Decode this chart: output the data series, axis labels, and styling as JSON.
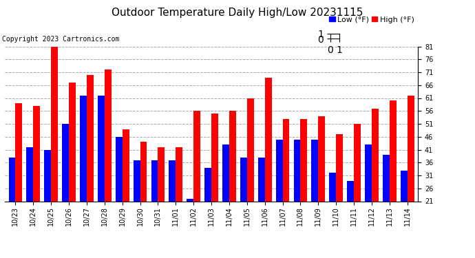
{
  "title": "Outdoor Temperature Daily High/Low 20231115",
  "copyright": "Copyright 2023 Cartronics.com",
  "legend_low": "Low",
  "legend_high": "High",
  "legend_unit": "(°F)",
  "dates": [
    "10/23",
    "10/24",
    "10/25",
    "10/26",
    "10/27",
    "10/28",
    "10/29",
    "10/30",
    "10/31",
    "11/01",
    "11/02",
    "11/03",
    "11/04",
    "11/05",
    "11/06",
    "11/07",
    "11/08",
    "11/09",
    "11/10",
    "11/11",
    "11/12",
    "11/13",
    "11/14"
  ],
  "high": [
    59,
    58,
    82,
    67,
    70,
    72,
    49,
    44,
    42,
    42,
    56,
    55,
    56,
    61,
    69,
    53,
    53,
    54,
    47,
    51,
    57,
    60,
    62
  ],
  "low": [
    38,
    42,
    41,
    51,
    62,
    62,
    46,
    37,
    37,
    37,
    22,
    34,
    43,
    38,
    38,
    45,
    45,
    45,
    32,
    29,
    43,
    39,
    33
  ],
  "high_color": "#ff0000",
  "low_color": "#0000ff",
  "bg_color": "#ffffff",
  "grid_color": "#aaaaaa",
  "ylim": [
    21.0,
    81.0
  ],
  "yticks": [
    21.0,
    26.0,
    31.0,
    36.0,
    41.0,
    46.0,
    51.0,
    56.0,
    61.0,
    66.0,
    71.0,
    76.0,
    81.0
  ],
  "title_fontsize": 11,
  "copyright_fontsize": 7,
  "legend_fontsize": 8,
  "tick_fontsize": 7,
  "bar_width": 0.38,
  "figsize": [
    6.9,
    3.75
  ],
  "dpi": 100
}
